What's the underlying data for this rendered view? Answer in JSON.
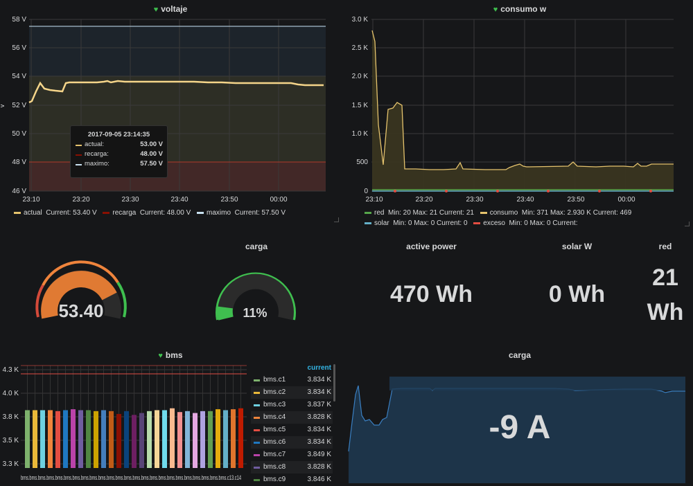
{
  "voltaje": {
    "title": "voltaje",
    "y_ticks": [
      "58 V",
      "56 V",
      "54 V",
      "52 V",
      "50 V",
      "48 V",
      "46 V"
    ],
    "x_ticks": [
      "23:10",
      "23:20",
      "23:30",
      "23:40",
      "23:50",
      "00:00"
    ],
    "side_label": "v",
    "tooltip": {
      "time": "2017-09-05 23:14:35",
      "rows": [
        {
          "name": "actual:",
          "value": "53.00 V",
          "color": "#e5c36d"
        },
        {
          "name": "recarga:",
          "value": "48.00 V",
          "color": "#890f02"
        },
        {
          "name": "maximo:",
          "value": "57.50 V",
          "color": "#c8e1f0"
        }
      ]
    },
    "legend": [
      {
        "name": "actual",
        "text": "Current: 53.40 V",
        "color": "#e5c36d"
      },
      {
        "name": "recarga",
        "text": "Current: 48.00 V",
        "color": "#890f02"
      },
      {
        "name": "maximo",
        "text": "Current: 57.50 V",
        "color": "#c8e1f0"
      }
    ]
  },
  "consumo": {
    "title": "consumo w",
    "y_ticks": [
      "3.0 K",
      "2.5 K",
      "2.0 K",
      "1.5 K",
      "1.0 K",
      "500",
      "0"
    ],
    "x_ticks": [
      "23:10",
      "23:20",
      "23:30",
      "23:40",
      "23:50",
      "00:00"
    ],
    "legend_row1": [
      {
        "name": "red",
        "text": "Min: 20  Max: 21  Current: 21",
        "color": "#56a64b"
      },
      {
        "name": "consumo",
        "text": "Min: 371  Max: 2.930 K  Current: 469",
        "color": "#e5c36d"
      }
    ],
    "legend_row2": [
      {
        "name": "solar",
        "text": "Min: 0  Max: 0  Current: 0",
        "color": "#64b0c8"
      },
      {
        "name": "exceso",
        "text": "Min: 0  Max: 0  Current:",
        "color": "#e24d42"
      }
    ]
  },
  "gauges": {
    "voltage_value": "53.40",
    "voltage_level": 0.72,
    "carga_title": "carga",
    "carga_value": "11%",
    "carga_level": 0.11
  },
  "stats": {
    "active_power_title": "active power",
    "active_power_value": "470 Wh",
    "solar_title": "solar W",
    "solar_value": "0 Wh",
    "red_title": "red",
    "red_value_line1": "21",
    "red_value_line2": "Wh"
  },
  "bms": {
    "title": "bms",
    "y_ticks": [
      "4.3 K",
      "4.0 K",
      "3.8 K",
      "3.5 K",
      "3.3 K"
    ],
    "x_label": "bms.bms.bms.bms.bms.bms.bms.bms.bms.bms.bms.bms.bms.bms.bms.bms.bms.bms.bms.bms.bms.bms.bms.bms.c13.c14",
    "legend_header": "current",
    "rows": [
      {
        "name": "bms.c1",
        "value": "3.834 K",
        "color": "#7eb26d"
      },
      {
        "name": "bms.c2",
        "value": "3.834 K",
        "color": "#eab839"
      },
      {
        "name": "bms.c3",
        "value": "3.837 K",
        "color": "#6ed0e0"
      },
      {
        "name": "bms.c4",
        "value": "3.828 K",
        "color": "#ef843c"
      },
      {
        "name": "bms.c5",
        "value": "3.834 K",
        "color": "#e24d42"
      },
      {
        "name": "bms.c6",
        "value": "3.834 K",
        "color": "#1f78c1"
      },
      {
        "name": "bms.c7",
        "value": "3.849 K",
        "color": "#ba43a9"
      },
      {
        "name": "bms.c8",
        "value": "3.828 K",
        "color": "#705da0"
      },
      {
        "name": "bms.c9",
        "value": "3.846 K",
        "color": "#508642"
      }
    ],
    "bar_values": [
      3.87,
      3.87,
      3.87,
      3.87,
      3.86,
      3.87,
      3.88,
      3.87,
      3.87,
      3.86,
      3.87,
      3.86,
      3.83,
      3.86,
      3.82,
      3.84,
      3.86,
      3.87,
      3.87,
      3.89,
      3.85,
      3.86,
      3.84,
      3.86,
      3.86,
      3.88,
      3.87,
      3.88,
      3.89
    ],
    "bar_colors": [
      "#7eb26d",
      "#eab839",
      "#6ed0e0",
      "#ef843c",
      "#e24d42",
      "#1f78c1",
      "#ba43a9",
      "#705da0",
      "#508642",
      "#cca300",
      "#447ebc",
      "#c15c17",
      "#890f02",
      "#0a437c",
      "#6d1f62",
      "#584477",
      "#b7dbab",
      "#f4d598",
      "#70dbed",
      "#f9ba8f",
      "#f29191",
      "#82b5d8",
      "#e5a8e2",
      "#aea2e0",
      "#629e51",
      "#e5ac0e",
      "#64b0c8",
      "#e0752d",
      "#bf1b00"
    ]
  },
  "carga2": {
    "title": "carga",
    "value": "-9 A"
  }
}
